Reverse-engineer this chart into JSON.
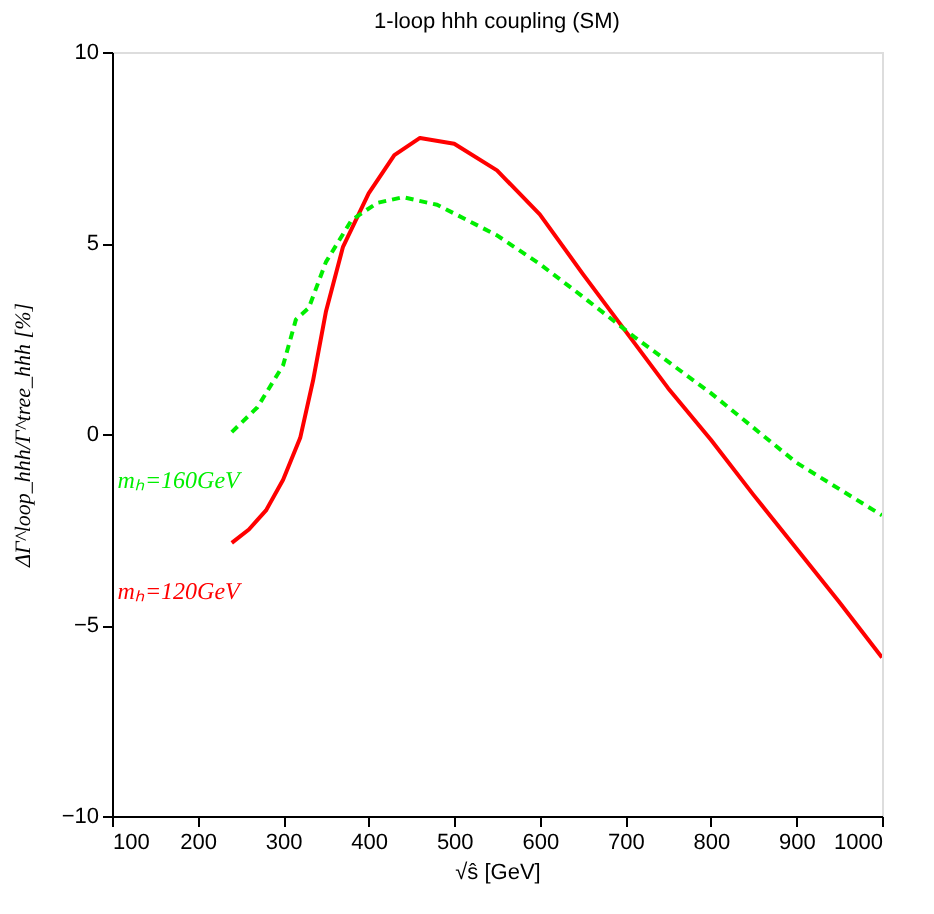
{
  "chart_data": {
    "type": "line",
    "title": "1-loop hhh coupling (SM)",
    "xlabel": "√ŝ [GeV]",
    "ylabel": "ΔΓ^loop_hhh/Γ^tree_hhh [%]",
    "xlim": [
      100,
      1000
    ],
    "xticks": [
      100,
      200,
      300,
      400,
      500,
      600,
      700,
      800,
      900,
      1000
    ],
    "ylim": [
      -10,
      10
    ],
    "yticks": [
      -10,
      -5,
      0,
      5,
      10
    ],
    "grid": false,
    "marker": "none",
    "series": [
      {
        "name": "mₕ=120GeV",
        "color": "#ff0000",
        "line_style": "solid",
        "x": [
          240,
          260,
          280,
          300,
          320,
          335,
          350,
          370,
          400,
          430,
          460,
          500,
          550,
          600,
          650,
          700,
          750,
          800,
          850,
          900,
          950,
          1000
        ],
        "values": [
          -2.85,
          -2.5,
          -2.0,
          -1.2,
          -0.1,
          1.4,
          3.2,
          4.9,
          6.3,
          7.3,
          7.75,
          7.6,
          6.9,
          5.75,
          4.2,
          2.7,
          1.2,
          -0.15,
          -1.6,
          -3.0,
          -4.4,
          -5.85
        ]
      },
      {
        "name": "mₕ=160GeV",
        "color": "#00ee00",
        "line_style": "dashed",
        "x": [
          240,
          270,
          300,
          315,
          330,
          350,
          380,
          410,
          440,
          480,
          550,
          600,
          650,
          710,
          800,
          900,
          1000
        ],
        "values": [
          0.05,
          0.7,
          1.8,
          3.0,
          3.3,
          4.5,
          5.6,
          6.05,
          6.2,
          6.0,
          5.2,
          4.45,
          3.6,
          2.55,
          1.07,
          -0.75,
          -2.13
        ]
      }
    ]
  }
}
